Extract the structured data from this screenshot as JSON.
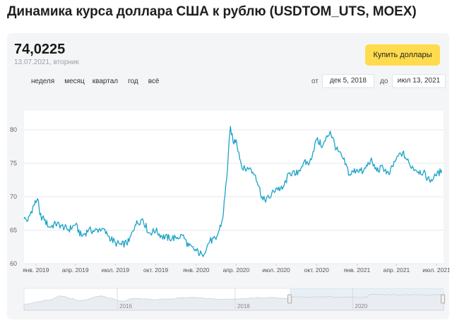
{
  "page": {
    "title": "Динамика курса доллара США к рублю (USDTOM_UTS, MOEX)"
  },
  "header": {
    "price": "74,0225",
    "date": "13.07.2021, вторник",
    "buy_button": "Купить доллары"
  },
  "periods": [
    "неделя",
    "месяц",
    "квартал",
    "год",
    "всё"
  ],
  "range": {
    "from_label": "от",
    "from_value": "дек 5, 2018",
    "to_label": "до",
    "to_value": "июл 13, 2021"
  },
  "colors": {
    "line": "#1ba3c6",
    "accent_button": "#ffdb4d",
    "navigator_fill": "#d9e4ee"
  },
  "chart_data": {
    "type": "line",
    "series": [
      {
        "values": [
          [
            "2018-12-05",
            66.7
          ],
          [
            "2018-12-14",
            66.5
          ],
          [
            "2018-12-25",
            68.4
          ],
          [
            "2019-01-05",
            69.7
          ],
          [
            "2019-01-10",
            67.3
          ],
          [
            "2019-01-20",
            66.5
          ],
          [
            "2019-02-01",
            65.5
          ],
          [
            "2019-02-15",
            65.9
          ],
          [
            "2019-03-01",
            65.7
          ],
          [
            "2019-03-15",
            65.0
          ],
          [
            "2019-04-01",
            65.8
          ],
          [
            "2019-04-15",
            64.1
          ],
          [
            "2019-05-01",
            65.0
          ],
          [
            "2019-05-15",
            64.9
          ],
          [
            "2019-06-01",
            65.3
          ],
          [
            "2019-06-15",
            64.1
          ],
          [
            "2019-07-01",
            63.1
          ],
          [
            "2019-07-15",
            62.8
          ],
          [
            "2019-08-01",
            63.3
          ],
          [
            "2019-08-15",
            65.8
          ],
          [
            "2019-09-01",
            66.7
          ],
          [
            "2019-09-15",
            64.6
          ],
          [
            "2019-10-01",
            64.9
          ],
          [
            "2019-10-15",
            64.1
          ],
          [
            "2019-11-01",
            63.8
          ],
          [
            "2019-11-15",
            63.9
          ],
          [
            "2019-12-01",
            64.2
          ],
          [
            "2019-12-15",
            62.6
          ],
          [
            "2020-01-01",
            61.9
          ],
          [
            "2020-01-15",
            61.3
          ],
          [
            "2020-02-01",
            63.4
          ],
          [
            "2020-02-15",
            63.6
          ],
          [
            "2020-03-01",
            66.6
          ],
          [
            "2020-03-10",
            72.5
          ],
          [
            "2020-03-19",
            80.5
          ],
          [
            "2020-03-25",
            78.1
          ],
          [
            "2020-04-01",
            78.5
          ],
          [
            "2020-04-15",
            74.1
          ],
          [
            "2020-05-01",
            74.2
          ],
          [
            "2020-05-15",
            73.2
          ],
          [
            "2020-06-01",
            69.5
          ],
          [
            "2020-06-15",
            69.8
          ],
          [
            "2020-07-01",
            71.3
          ],
          [
            "2020-07-15",
            71.1
          ],
          [
            "2020-08-01",
            73.6
          ],
          [
            "2020-08-15",
            73.3
          ],
          [
            "2020-09-01",
            75.0
          ],
          [
            "2020-09-15",
            75.1
          ],
          [
            "2020-10-01",
            78.5
          ],
          [
            "2020-10-15",
            77.6
          ],
          [
            "2020-11-01",
            79.8
          ],
          [
            "2020-11-15",
            77.1
          ],
          [
            "2020-12-01",
            75.6
          ],
          [
            "2020-12-15",
            73.3
          ],
          [
            "2021-01-01",
            74.1
          ],
          [
            "2021-01-15",
            73.7
          ],
          [
            "2021-02-01",
            75.5
          ],
          [
            "2021-02-15",
            73.8
          ],
          [
            "2021-03-01",
            74.4
          ],
          [
            "2021-03-15",
            73.3
          ],
          [
            "2021-04-01",
            75.8
          ],
          [
            "2021-04-15",
            76.6
          ],
          [
            "2021-05-01",
            74.8
          ],
          [
            "2021-05-15",
            74.0
          ],
          [
            "2021-06-01",
            73.6
          ],
          [
            "2021-06-15",
            72.4
          ],
          [
            "2021-07-01",
            73.1
          ],
          [
            "2021-07-13",
            74.0
          ]
        ]
      }
    ],
    "ylim": [
      60,
      82
    ],
    "yticks": [
      60,
      65,
      70,
      75,
      80
    ],
    "xticks": [
      {
        "date": "2019-01-01",
        "label": "янв. 2019"
      },
      {
        "date": "2019-04-01",
        "label": "апр. 2019"
      },
      {
        "date": "2019-07-01",
        "label": "июл. 2019"
      },
      {
        "date": "2019-10-01",
        "label": "окт. 2019"
      },
      {
        "date": "2020-01-01",
        "label": "янв. 2020"
      },
      {
        "date": "2020-04-01",
        "label": "апр. 2020"
      },
      {
        "date": "2020-07-01",
        "label": "июл. 2020"
      },
      {
        "date": "2020-10-01",
        "label": "окт. 2020"
      },
      {
        "date": "2021-01-01",
        "label": "янв. 2021"
      },
      {
        "date": "2021-04-01",
        "label": "апр. 2021"
      },
      {
        "date": "2021-07-01",
        "label": "июл. 2021"
      }
    ],
    "grid": true,
    "navigator": {
      "years": [
        "2016",
        "2018",
        "2020"
      ]
    }
  }
}
